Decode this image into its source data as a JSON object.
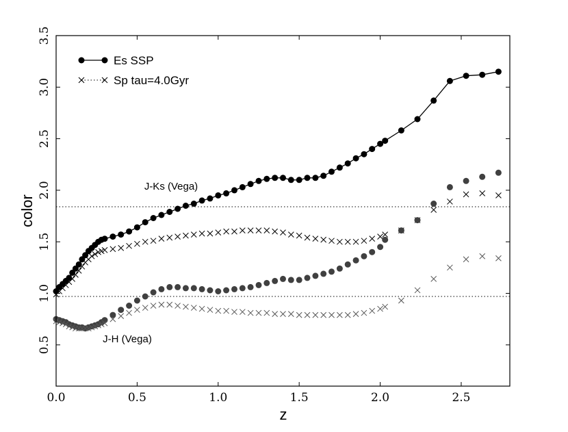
{
  "chart_data": {
    "type": "scatter",
    "title": "",
    "xlabel": "z",
    "ylabel": "color",
    "xlim": [
      0.0,
      2.8
    ],
    "ylim": [
      0.1,
      3.5
    ],
    "xticks": [
      "0.0",
      "0.5",
      "1.0",
      "1.5",
      "2.0",
      "2.5"
    ],
    "xtick_values": [
      0.0,
      0.5,
      1.0,
      1.5,
      2.0,
      2.5
    ],
    "yticks": [
      "0.5",
      "1.0",
      "1.5",
      "2.0",
      "2.5",
      "3.0",
      "3.5"
    ],
    "ytick_values": [
      0.5,
      1.0,
      1.5,
      2.0,
      2.5,
      3.0,
      3.5
    ],
    "grid": false,
    "legend_position": "top-left",
    "legend": [
      {
        "label": "Es SSP",
        "marker": "circle",
        "line": "solid"
      },
      {
        "label": "Sp tau=4.0Gyr",
        "marker": "x",
        "line": "dotted"
      }
    ],
    "annotations": [
      {
        "text": "J-Ks (Vega)",
        "x": 0.55,
        "y": 1.92
      },
      {
        "text": "J-H (Vega)",
        "x": 0.55,
        "y": 0.55
      }
    ],
    "hlines": [
      1.84,
      0.97
    ],
    "series": [
      {
        "name": "Es SSP",
        "panel": "J-Ks",
        "marker": "circle",
        "color": "#000000",
        "line": true,
        "x": [
          0.0,
          0.02,
          0.04,
          0.06,
          0.08,
          0.1,
          0.12,
          0.14,
          0.16,
          0.18,
          0.2,
          0.22,
          0.24,
          0.26,
          0.28,
          0.3,
          0.35,
          0.4,
          0.45,
          0.5,
          0.55,
          0.6,
          0.65,
          0.7,
          0.75,
          0.8,
          0.85,
          0.9,
          0.95,
          1.0,
          1.05,
          1.1,
          1.15,
          1.2,
          1.25,
          1.3,
          1.35,
          1.4,
          1.45,
          1.5,
          1.55,
          1.6,
          1.65,
          1.7,
          1.75,
          1.8,
          1.85,
          1.9,
          1.95,
          2.0,
          2.03,
          2.13,
          2.23,
          2.33,
          2.43,
          2.53,
          2.63,
          2.73
        ],
        "y": [
          1.02,
          1.06,
          1.09,
          1.12,
          1.15,
          1.2,
          1.24,
          1.28,
          1.33,
          1.37,
          1.41,
          1.44,
          1.47,
          1.5,
          1.52,
          1.53,
          1.55,
          1.57,
          1.6,
          1.64,
          1.69,
          1.73,
          1.76,
          1.79,
          1.82,
          1.85,
          1.87,
          1.9,
          1.92,
          1.95,
          1.97,
          2.0,
          2.03,
          2.06,
          2.09,
          2.11,
          2.12,
          2.12,
          2.1,
          2.1,
          2.12,
          2.12,
          2.14,
          2.18,
          2.22,
          2.26,
          2.31,
          2.35,
          2.4,
          2.45,
          2.48,
          2.58,
          2.69,
          2.87,
          3.06,
          3.11,
          3.12,
          3.15
        ]
      },
      {
        "name": "Sp tau=4.0Gyr",
        "panel": "J-Ks",
        "marker": "x",
        "color": "#000000",
        "line": false,
        "x": [
          0.0,
          0.02,
          0.04,
          0.06,
          0.08,
          0.1,
          0.12,
          0.14,
          0.16,
          0.18,
          0.2,
          0.22,
          0.24,
          0.26,
          0.28,
          0.3,
          0.35,
          0.4,
          0.45,
          0.5,
          0.55,
          0.6,
          0.65,
          0.7,
          0.75,
          0.8,
          0.85,
          0.9,
          0.95,
          1.0,
          1.05,
          1.1,
          1.15,
          1.2,
          1.25,
          1.3,
          1.35,
          1.4,
          1.45,
          1.5,
          1.55,
          1.6,
          1.65,
          1.7,
          1.75,
          1.8,
          1.85,
          1.9,
          1.95,
          2.0,
          2.03,
          2.13,
          2.23,
          2.33,
          2.43,
          2.53,
          2.63,
          2.73
        ],
        "y": [
          0.99,
          1.02,
          1.05,
          1.08,
          1.11,
          1.14,
          1.18,
          1.22,
          1.26,
          1.3,
          1.33,
          1.36,
          1.38,
          1.4,
          1.41,
          1.42,
          1.43,
          1.44,
          1.46,
          1.48,
          1.5,
          1.51,
          1.53,
          1.54,
          1.55,
          1.56,
          1.57,
          1.58,
          1.58,
          1.59,
          1.6,
          1.6,
          1.61,
          1.61,
          1.61,
          1.61,
          1.6,
          1.59,
          1.57,
          1.56,
          1.54,
          1.53,
          1.52,
          1.51,
          1.5,
          1.5,
          1.5,
          1.51,
          1.53,
          1.55,
          1.57,
          1.61,
          1.71,
          1.81,
          1.89,
          1.96,
          1.97,
          1.95
        ]
      },
      {
        "name": "Es SSP",
        "panel": "J-H",
        "marker": "circle",
        "color": "#404040",
        "line": false,
        "x": [
          0.0,
          0.02,
          0.04,
          0.06,
          0.08,
          0.1,
          0.12,
          0.14,
          0.16,
          0.18,
          0.2,
          0.22,
          0.24,
          0.26,
          0.28,
          0.3,
          0.35,
          0.4,
          0.45,
          0.5,
          0.55,
          0.6,
          0.65,
          0.7,
          0.75,
          0.8,
          0.85,
          0.9,
          0.95,
          1.0,
          1.05,
          1.1,
          1.15,
          1.2,
          1.25,
          1.3,
          1.35,
          1.4,
          1.45,
          1.5,
          1.55,
          1.6,
          1.65,
          1.7,
          1.75,
          1.8,
          1.85,
          1.9,
          1.95,
          2.0,
          2.03,
          2.13,
          2.23,
          2.33,
          2.43,
          2.53,
          2.63,
          2.73
        ],
        "y": [
          0.75,
          0.74,
          0.73,
          0.72,
          0.7,
          0.69,
          0.68,
          0.67,
          0.67,
          0.66,
          0.67,
          0.68,
          0.69,
          0.7,
          0.72,
          0.74,
          0.79,
          0.84,
          0.88,
          0.93,
          0.97,
          1.01,
          1.04,
          1.06,
          1.06,
          1.05,
          1.05,
          1.04,
          1.03,
          1.02,
          1.03,
          1.04,
          1.05,
          1.06,
          1.08,
          1.1,
          1.12,
          1.14,
          1.13,
          1.13,
          1.15,
          1.17,
          1.19,
          1.21,
          1.24,
          1.28,
          1.32,
          1.36,
          1.4,
          1.45,
          1.52,
          1.61,
          1.71,
          1.87,
          2.03,
          2.09,
          2.13,
          2.17
        ]
      },
      {
        "name": "Sp tau=4.0Gyr",
        "panel": "J-H",
        "marker": "x",
        "color": "#555555",
        "line": false,
        "x": [
          0.0,
          0.02,
          0.04,
          0.06,
          0.08,
          0.1,
          0.12,
          0.14,
          0.16,
          0.18,
          0.2,
          0.22,
          0.24,
          0.26,
          0.28,
          0.3,
          0.35,
          0.4,
          0.45,
          0.5,
          0.55,
          0.6,
          0.65,
          0.7,
          0.75,
          0.8,
          0.85,
          0.9,
          0.95,
          1.0,
          1.05,
          1.1,
          1.15,
          1.2,
          1.25,
          1.3,
          1.35,
          1.4,
          1.45,
          1.5,
          1.55,
          1.6,
          1.65,
          1.7,
          1.75,
          1.8,
          1.85,
          1.9,
          1.95,
          2.0,
          2.03,
          2.13,
          2.23,
          2.33,
          2.43,
          2.53,
          2.63,
          2.73
        ],
        "y": [
          0.73,
          0.72,
          0.71,
          0.7,
          0.68,
          0.67,
          0.66,
          0.66,
          0.66,
          0.66,
          0.66,
          0.67,
          0.68,
          0.69,
          0.7,
          0.71,
          0.75,
          0.78,
          0.81,
          0.84,
          0.86,
          0.88,
          0.89,
          0.89,
          0.88,
          0.87,
          0.86,
          0.85,
          0.84,
          0.83,
          0.83,
          0.82,
          0.82,
          0.81,
          0.81,
          0.81,
          0.8,
          0.8,
          0.8,
          0.79,
          0.79,
          0.79,
          0.79,
          0.79,
          0.79,
          0.79,
          0.8,
          0.81,
          0.83,
          0.85,
          0.87,
          0.93,
          1.03,
          1.14,
          1.25,
          1.33,
          1.36,
          1.34
        ]
      }
    ]
  }
}
